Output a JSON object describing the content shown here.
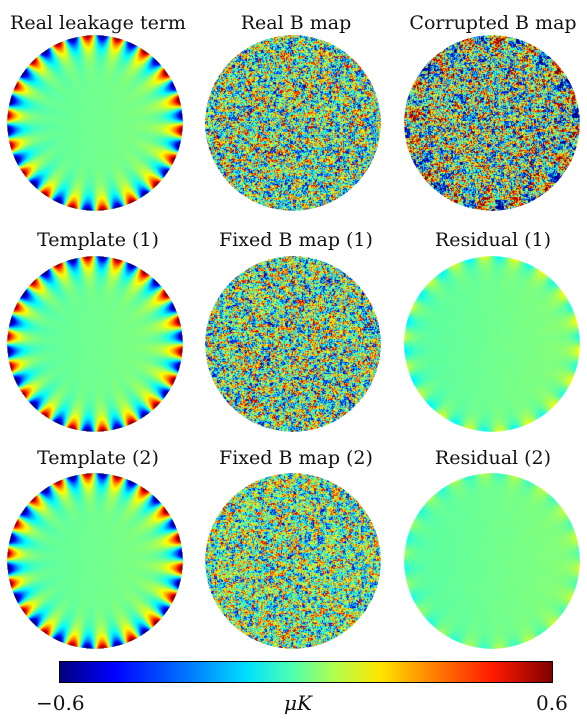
{
  "panels": [
    {
      "title": "Real leakage term",
      "kind": "leakage",
      "strength": 1.0
    },
    {
      "title": "Real B map",
      "kind": "noise",
      "strength": 1.0
    },
    {
      "title": "Corrupted B map",
      "kind": "noise_leak",
      "strength": 1.0
    },
    {
      "title": "Template (1)",
      "kind": "leakage",
      "strength": 1.0
    },
    {
      "title": "Fixed B map (1)",
      "kind": "noise",
      "strength": 1.0
    },
    {
      "title": "Residual (1)",
      "kind": "residual",
      "strength": 0.35
    },
    {
      "title": "Template (2)",
      "kind": "leakage",
      "strength": 1.0
    },
    {
      "title": "Fixed B map (2)",
      "kind": "noise",
      "strength": 0.9
    },
    {
      "title": "Residual (2)",
      "kind": "residual",
      "strength": 0.2
    }
  ],
  "colorbar": {
    "min_label": "−0.6",
    "max_label": "0.6",
    "unit_label": "μK",
    "colormap": "jet"
  }
}
